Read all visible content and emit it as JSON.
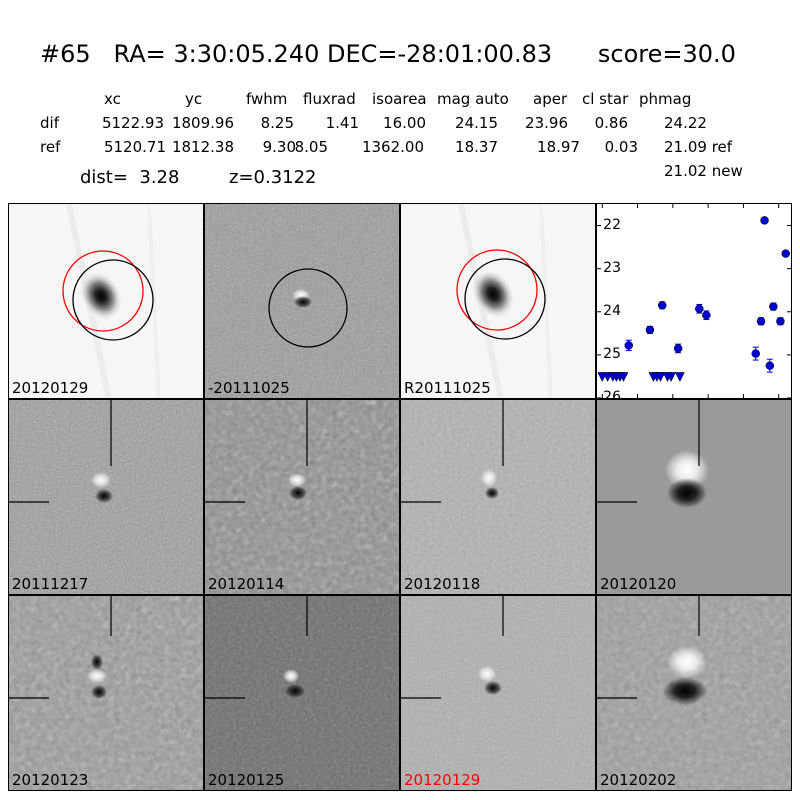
{
  "header": {
    "title": "#65   RA= 3:30:05.240 DEC=-28:01:00.83      score=30.0"
  },
  "table": {
    "columns": [
      "xc",
      "yc",
      "fwhm",
      "fluxrad",
      "isoarea",
      "mag auto",
      "aper",
      "cl star",
      "phmag"
    ],
    "rows": [
      {
        "label": "dif",
        "values": [
          "5122.93",
          "1809.96",
          "8.25",
          "1.41",
          "16.00",
          "24.15",
          "23.96",
          "0.86"
        ],
        "phmag": "24.22"
      },
      {
        "label": "ref",
        "values": [
          "5120.71",
          "1812.38",
          "9.30",
          "8.05",
          "1362.00",
          "18.37",
          "18.97",
          "0.03"
        ],
        "phmag": "21.09 ref"
      }
    ],
    "phmag_new": "21.02 new"
  },
  "meta": {
    "dist": "dist=  3.28",
    "z": "z=0.3122"
  },
  "panels": [
    {
      "label": "20120129"
    },
    {
      "label": "-20111025"
    },
    {
      "label": "R20111025"
    },
    {
      "label": "20111217"
    },
    {
      "label": "20120114"
    },
    {
      "label": "20120118"
    },
    {
      "label": "20120120"
    },
    {
      "label": "20120123"
    },
    {
      "label": "20120125"
    },
    {
      "label": "20120129",
      "highlight_color": "#ff0000"
    },
    {
      "label": "20120202"
    }
  ],
  "chart_data": {
    "type": "scatter",
    "title": "",
    "xlabel": "",
    "ylabel": "",
    "xlim": [
      -3,
      107
    ],
    "ylim": [
      26,
      21.5
    ],
    "y_inverted": true,
    "xticks": [
      0,
      20,
      40,
      60,
      80,
      100
    ],
    "yticks": [
      22,
      23,
      24,
      25,
      26
    ],
    "marker_color": "#0000cc",
    "points": [
      {
        "x": 15,
        "y": 24.78,
        "err": 0.12
      },
      {
        "x": 27,
        "y": 24.42,
        "err": 0.08
      },
      {
        "x": 34,
        "y": 23.85,
        "err": 0.08
      },
      {
        "x": 43,
        "y": 24.85,
        "err": 0.1
      },
      {
        "x": 55,
        "y": 23.93,
        "err": 0.1
      },
      {
        "x": 59,
        "y": 24.08,
        "err": 0.1
      },
      {
        "x": 87,
        "y": 24.97,
        "err": 0.15
      },
      {
        "x": 90,
        "y": 24.22,
        "err": 0.08
      },
      {
        "x": 92,
        "y": 21.88,
        "err": 0.05
      },
      {
        "x": 95,
        "y": 25.25,
        "err": 0.15
      },
      {
        "x": 97,
        "y": 23.88,
        "err": 0.08
      },
      {
        "x": 101,
        "y": 24.22,
        "err": 0.08
      },
      {
        "x": 104,
        "y": 22.65,
        "err": 0.05
      }
    ],
    "upper_limits": [
      {
        "x": 0,
        "y": 25.5
      },
      {
        "x": 3,
        "y": 25.5
      },
      {
        "x": 6,
        "y": 25.5
      },
      {
        "x": 8,
        "y": 25.5
      },
      {
        "x": 10,
        "y": 25.5
      },
      {
        "x": 12,
        "y": 25.5
      },
      {
        "x": 29,
        "y": 25.5
      },
      {
        "x": 31,
        "y": 25.5
      },
      {
        "x": 33,
        "y": 25.5
      },
      {
        "x": 37,
        "y": 25.5
      },
      {
        "x": 39,
        "y": 25.5
      },
      {
        "x": 44,
        "y": 25.5
      }
    ]
  }
}
